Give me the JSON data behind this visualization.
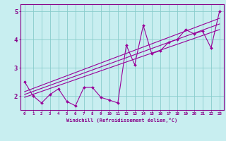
{
  "xlabel": "Windchill (Refroidissement éolien,°C)",
  "bg_color": "#c8eef0",
  "line_color": "#990099",
  "grid_color": "#88cccc",
  "axis_color": "#880088",
  "x_data": [
    0,
    1,
    2,
    3,
    4,
    5,
    6,
    7,
    8,
    9,
    10,
    11,
    12,
    13,
    14,
    15,
    16,
    17,
    18,
    19,
    20,
    21,
    22,
    23
  ],
  "y_scatter": [
    2.5,
    2.0,
    1.75,
    2.05,
    2.25,
    1.8,
    1.65,
    2.3,
    2.3,
    1.95,
    1.85,
    1.75,
    3.8,
    3.1,
    4.5,
    3.5,
    3.6,
    3.9,
    4.0,
    4.35,
    4.2,
    4.3,
    3.7,
    5.0
  ],
  "ylim": [
    1.5,
    5.25
  ],
  "xlim": [
    -0.5,
    23.5
  ],
  "reg_lines": [
    {
      "x": [
        0,
        23
      ],
      "y": [
        2.05,
        4.55
      ]
    },
    {
      "x": [
        0,
        23
      ],
      "y": [
        1.95,
        4.35
      ]
    },
    {
      "x": [
        0,
        23
      ],
      "y": [
        2.15,
        4.75
      ]
    }
  ],
  "yticks": [
    2,
    3,
    4,
    5
  ],
  "xtick_labels": [
    "0",
    "1",
    "2",
    "3",
    "4",
    "5",
    "6",
    "7",
    "8",
    "9",
    "10",
    "11",
    "12",
    "13",
    "14",
    "15",
    "16",
    "17",
    "18",
    "19",
    "20",
    "21",
    "22",
    "23"
  ]
}
